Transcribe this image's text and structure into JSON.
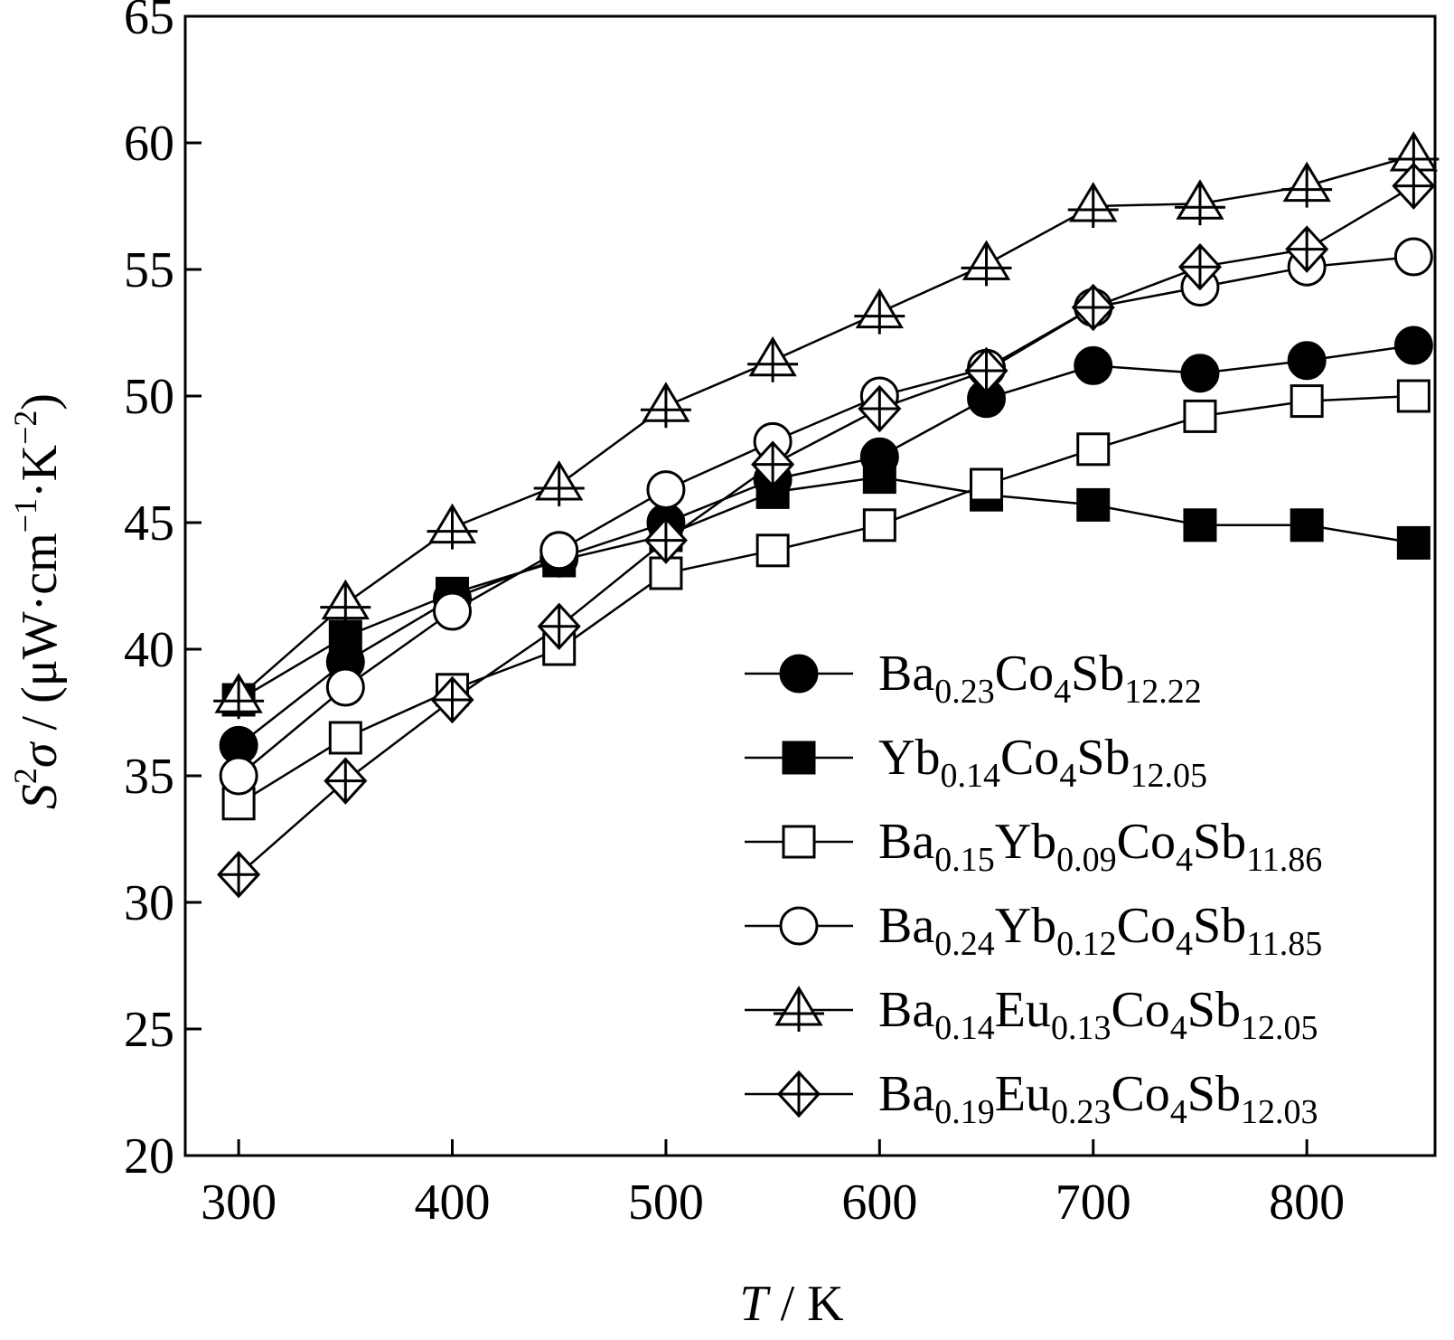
{
  "chart_data": {
    "type": "line",
    "title": "",
    "xlabel": {
      "symbol": "T",
      "unit": "K"
    },
    "ylabel": {
      "text": "S²σ / (μW·cm⁻¹·K⁻²)",
      "symbol_base": "S",
      "symbol_sup": "2",
      "symbol_greek": "σ",
      "unit_prefix": "(μW·cm",
      "unit_sup1": "−1",
      "unit_mid": "·K",
      "unit_sup2": "−2",
      "unit_suffix": ")"
    },
    "xlim": [
      275,
      860
    ],
    "ylim": [
      20,
      65
    ],
    "xticks": [
      300,
      400,
      500,
      600,
      700,
      800
    ],
    "yticks": [
      20,
      25,
      30,
      35,
      40,
      45,
      50,
      55,
      60,
      65
    ],
    "grid": false,
    "legend_position": "bottom-right",
    "x": [
      300,
      350,
      400,
      450,
      500,
      550,
      600,
      650,
      700,
      750,
      800,
      850
    ],
    "series": [
      {
        "name": "Ba0.23Co4Sb12.22",
        "name_parts": [
          [
            "Ba",
            ""
          ],
          [
            "0.23",
            "sub"
          ],
          [
            "Co",
            ""
          ],
          [
            "4",
            "sub"
          ],
          [
            "Sb",
            ""
          ],
          [
            "12.22",
            "sub"
          ]
        ],
        "marker": "filled-circle",
        "values": [
          36.2,
          39.5,
          42.0,
          43.6,
          45.0,
          46.7,
          47.6,
          49.9,
          51.2,
          50.9,
          51.4,
          52.0
        ]
      },
      {
        "name": "Yb0.14Co4Sb12.05",
        "name_parts": [
          [
            "Yb",
            ""
          ],
          [
            "0.14",
            "sub"
          ],
          [
            "Co",
            ""
          ],
          [
            "4",
            "sub"
          ],
          [
            "Sb",
            ""
          ],
          [
            "12.05",
            "sub"
          ]
        ],
        "marker": "filled-square",
        "values": [
          38.0,
          40.5,
          42.2,
          43.5,
          44.5,
          46.2,
          46.8,
          46.1,
          45.7,
          44.9,
          44.9,
          44.2
        ]
      },
      {
        "name": "Ba0.15Yb0.09Co4Sb11.86",
        "name_parts": [
          [
            "Ba",
            ""
          ],
          [
            "0.15",
            "sub"
          ],
          [
            "Yb",
            ""
          ],
          [
            "0.09",
            "sub"
          ],
          [
            "Co",
            ""
          ],
          [
            "4",
            "sub"
          ],
          [
            "Sb",
            ""
          ],
          [
            "11.86",
            "sub"
          ]
        ],
        "marker": "open-square",
        "values": [
          33.9,
          36.5,
          38.4,
          40.0,
          43.0,
          43.9,
          44.9,
          46.5,
          47.9,
          49.2,
          49.8,
          50.0
        ]
      },
      {
        "name": "Ba0.24Yb0.12Co4Sb11.85",
        "name_parts": [
          [
            "Ba",
            ""
          ],
          [
            "0.24",
            "sub"
          ],
          [
            "Yb",
            ""
          ],
          [
            "0.12",
            "sub"
          ],
          [
            "Co",
            ""
          ],
          [
            "4",
            "sub"
          ],
          [
            "Sb",
            ""
          ],
          [
            "11.85",
            "sub"
          ]
        ],
        "marker": "open-circle",
        "values": [
          35.0,
          38.5,
          41.5,
          43.9,
          46.3,
          48.2,
          50.0,
          51.1,
          53.5,
          54.3,
          55.1,
          55.5
        ]
      },
      {
        "name": "Ba0.14Eu0.13Co4Sb12.05",
        "name_parts": [
          [
            "Ba",
            ""
          ],
          [
            "0.14",
            "sub"
          ],
          [
            "Eu",
            ""
          ],
          [
            "0.13",
            "sub"
          ],
          [
            "Co",
            ""
          ],
          [
            "4",
            "sub"
          ],
          [
            "Sb",
            ""
          ],
          [
            "12.05",
            "sub"
          ]
        ],
        "marker": "open-triangle-cross",
        "values": [
          38.1,
          41.8,
          44.8,
          46.5,
          49.6,
          51.4,
          53.3,
          55.2,
          57.5,
          57.6,
          58.3,
          59.5
        ]
      },
      {
        "name": "Ba0.19Eu0.23Co4Sb12.03",
        "name_parts": [
          [
            "Ba",
            ""
          ],
          [
            "0.19",
            "sub"
          ],
          [
            "Eu",
            ""
          ],
          [
            "0.23",
            "sub"
          ],
          [
            "Co",
            ""
          ],
          [
            "4",
            "sub"
          ],
          [
            "Sb",
            ""
          ],
          [
            "12.03",
            "sub"
          ]
        ],
        "marker": "open-diamond-cross",
        "values": [
          31.1,
          34.8,
          38.0,
          40.9,
          44.3,
          47.3,
          49.5,
          51.0,
          53.5,
          55.1,
          55.8,
          58.3
        ]
      }
    ]
  }
}
